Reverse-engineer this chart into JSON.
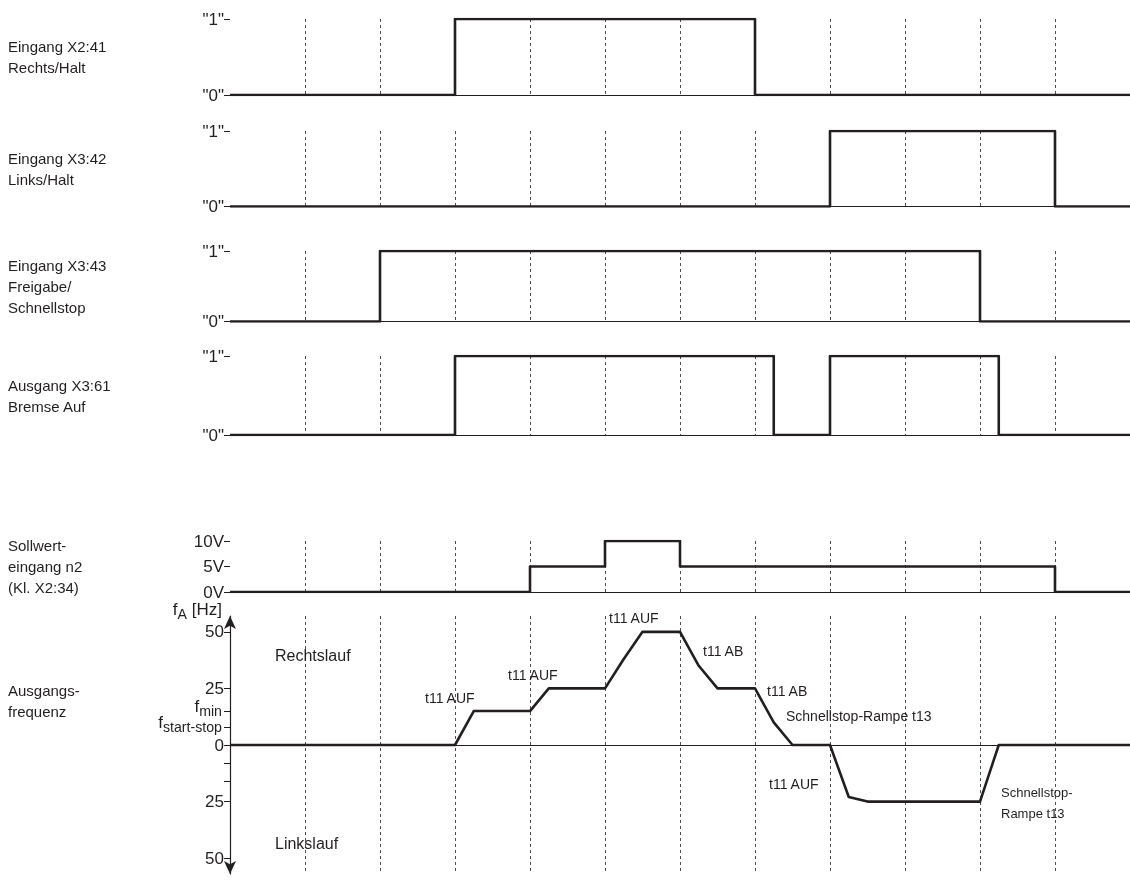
{
  "chart_data": [
    {
      "type": "step",
      "ylabel": "Eingang X2:41\nRechts/Halt",
      "categories": [
        null,
        null,
        null,
        null,
        null,
        null,
        null,
        null,
        null,
        null,
        null,
        null,
        null,
        null,
        null,
        null,
        null,
        null,
        null,
        null,
        null,
        null,
        null,
        null,
        null,
        null,
        null,
        null,
        null,
        null,
        null,
        null,
        null,
        null,
        null,
        null,
        null,
        null,
        null,
        null,
        null,
        null,
        null,
        null,
        null,
        null,
        null,
        null,
        null
      ],
      "series": [
        {
          "color": "#231f20",
          "values": [
            0,
            0,
            0,
            0,
            0,
            0,
            0,
            0,
            0,
            0,
            0,
            0,
            1,
            1,
            1,
            1,
            1,
            1,
            1,
            1,
            1,
            1,
            1,
            1,
            1,
            1,
            1,
            1,
            0,
            0,
            0,
            0,
            0,
            0,
            0,
            0,
            0,
            0,
            0,
            0,
            0,
            0,
            0,
            0,
            0,
            0,
            0,
            0,
            0
          ]
        }
      ],
      "ylim": [
        0,
        1
      ],
      "yticks": [
        {
          "value": 0,
          "label": "\"0\""
        },
        {
          "value": 1,
          "label": "\"1\""
        }
      ],
      "grid": "x",
      "marker": "none",
      "tick_labels": "y"
    },
    {
      "type": "step",
      "ylabel": "Eingang X3:42\nLinks/Halt",
      "categories": [
        null,
        null,
        null,
        null,
        null,
        null,
        null,
        null,
        null,
        null,
        null,
        null,
        null,
        null,
        null,
        null,
        null,
        null,
        null,
        null,
        null,
        null,
        null,
        null,
        null,
        null,
        null,
        null,
        null,
        null,
        null,
        null,
        null,
        null,
        null,
        null,
        null,
        null,
        null,
        null,
        null,
        null,
        null,
        null,
        null,
        null,
        null,
        null,
        null
      ],
      "series": [
        {
          "color": "#231f20",
          "values": [
            0,
            0,
            0,
            0,
            0,
            0,
            0,
            0,
            0,
            0,
            0,
            0,
            0,
            0,
            0,
            0,
            0,
            0,
            0,
            0,
            0,
            0,
            0,
            0,
            0,
            0,
            0,
            0,
            0,
            0,
            0,
            0,
            1,
            1,
            1,
            1,
            1,
            1,
            1,
            1,
            1,
            1,
            1,
            1,
            0,
            0,
            0,
            0,
            0
          ]
        }
      ],
      "ylim": [
        0,
        1
      ],
      "yticks": [
        {
          "value": 0,
          "label": "\"0\""
        },
        {
          "value": 1,
          "label": "\"1\""
        }
      ],
      "grid": "x",
      "marker": "none",
      "tick_labels": "y"
    },
    {
      "type": "step",
      "ylabel": "Eingang X3:43\nFreigabe/\nSchnellstop",
      "categories": [
        null,
        null,
        null,
        null,
        null,
        null,
        null,
        null,
        null,
        null,
        null,
        null,
        null,
        null,
        null,
        null,
        null,
        null,
        null,
        null,
        null,
        null,
        null,
        null,
        null,
        null,
        null,
        null,
        null,
        null,
        null,
        null,
        null,
        null,
        null,
        null,
        null,
        null,
        null,
        null,
        null,
        null,
        null,
        null,
        null,
        null,
        null,
        null,
        null
      ],
      "series": [
        {
          "color": "#231f20",
          "values": [
            0,
            0,
            0,
            0,
            0,
            0,
            0,
            0,
            1,
            1,
            1,
            1,
            1,
            1,
            1,
            1,
            1,
            1,
            1,
            1,
            1,
            1,
            1,
            1,
            1,
            1,
            1,
            1,
            1,
            1,
            1,
            1,
            1,
            1,
            1,
            1,
            1,
            1,
            1,
            1,
            0,
            0,
            0,
            0,
            0,
            0,
            0,
            0,
            0
          ]
        }
      ],
      "ylim": [
        0,
        1
      ],
      "yticks": [
        {
          "value": 0,
          "label": "\"0\""
        },
        {
          "value": 1,
          "label": "\"1\""
        }
      ],
      "grid": "x",
      "marker": "none",
      "tick_labels": "y"
    },
    {
      "type": "step",
      "ylabel": "Ausgang X3:61\nBremse Auf",
      "categories": [
        null,
        null,
        null,
        null,
        null,
        null,
        null,
        null,
        null,
        null,
        null,
        null,
        null,
        null,
        null,
        null,
        null,
        null,
        null,
        null,
        null,
        null,
        null,
        null,
        null,
        null,
        null,
        null,
        null,
        null,
        null,
        null,
        null,
        null,
        null,
        null,
        null,
        null,
        null,
        null,
        null,
        null,
        null,
        null,
        null,
        null,
        null,
        null,
        null
      ],
      "series": [
        {
          "color": "#231f20",
          "values": [
            0,
            0,
            0,
            0,
            0,
            0,
            0,
            0,
            0,
            0,
            0,
            0,
            1,
            1,
            1,
            1,
            1,
            1,
            1,
            1,
            1,
            1,
            1,
            1,
            1,
            1,
            1,
            1,
            1,
            0,
            0,
            0,
            1,
            1,
            1,
            1,
            1,
            1,
            1,
            1,
            1,
            0,
            0,
            0,
            0,
            0,
            0,
            0,
            0
          ]
        }
      ],
      "ylim": [
        0,
        1
      ],
      "yticks": [
        {
          "value": 0,
          "label": "\"0\""
        },
        {
          "value": 1,
          "label": "\"1\""
        }
      ],
      "grid": "x",
      "marker": "none",
      "tick_labels": "y"
    },
    {
      "type": "step",
      "ylabel": "Sollwert-\neingang n2\n(Kl. X2:34)",
      "categories": [
        null,
        null,
        null,
        null,
        null,
        null,
        null,
        null,
        null,
        null,
        null,
        null,
        null,
        null,
        null,
        null,
        null,
        null,
        null,
        null,
        null,
        null,
        null,
        null,
        null,
        null,
        null,
        null,
        null,
        null,
        null,
        null,
        null,
        null,
        null,
        null,
        null,
        null,
        null,
        null,
        null,
        null,
        null,
        null,
        null,
        null,
        null,
        null,
        null
      ],
      "series": [
        {
          "color": "#231f20",
          "values": [
            0,
            0,
            0,
            0,
            0,
            0,
            0,
            0,
            0,
            0,
            0,
            0,
            0,
            0,
            0,
            0,
            5,
            5,
            5,
            5,
            10,
            10,
            10,
            10,
            5,
            5,
            5,
            5,
            5,
            5,
            5,
            5,
            5,
            5,
            5,
            5,
            5,
            5,
            5,
            5,
            5,
            5,
            5,
            5,
            0,
            0,
            0,
            0,
            0
          ]
        }
      ],
      "ylim": [
        0,
        10
      ],
      "yticks": [
        {
          "value": 0,
          "label": "0V"
        },
        {
          "value": 5,
          "label": "5V"
        },
        {
          "value": 10,
          "label": "10V"
        }
      ],
      "grid": "x",
      "marker": "none",
      "tick_labels": "y"
    },
    {
      "type": "line",
      "ylabel": "f$_{A}$ [Hz]",
      "categories": [
        null,
        null,
        null,
        null,
        null,
        null,
        null,
        null,
        null,
        null,
        null,
        null,
        null,
        null,
        null,
        null,
        null,
        null,
        null,
        null,
        null,
        null,
        null,
        null,
        null,
        null,
        null,
        null,
        null,
        null,
        null,
        null,
        null,
        null,
        null,
        null,
        null,
        null,
        null,
        null,
        null,
        null,
        null,
        null,
        null,
        null,
        null,
        null,
        null
      ],
      "series": [
        {
          "color": "#231f20",
          "values": [
            0,
            0,
            0,
            0,
            0,
            0,
            0,
            0,
            0,
            0,
            0,
            0,
            0,
            15,
            15,
            15,
            15,
            25,
            25,
            25,
            25,
            38,
            50,
            50,
            50,
            35,
            25,
            25,
            25,
            10,
            0,
            0,
            0,
            -23,
            -25,
            -25,
            -25,
            -25,
            -25,
            -25,
            -25,
            0,
            0,
            0,
            0,
            0,
            0,
            0,
            0
          ]
        }
      ],
      "ylim": [
        -57,
        57
      ],
      "yticks": [
        {
          "value": -50,
          "label": "50"
        },
        {
          "value": -25,
          "label": "25"
        },
        {
          "value": -16,
          "label": null
        },
        {
          "value": -8,
          "label": null
        },
        0,
        {
          "value": 8,
          "label": "f$_{start-stop}$"
        },
        {
          "value": 15,
          "label": "f$_{min}$"
        },
        25,
        50
      ],
      "annotations": [
        "Ausgangs-\nfrequenz",
        "Rechtslauf",
        "Linkslauf",
        "t11 AUF",
        "t11 AUF",
        "t11 AUF",
        "t11 AB",
        "t11 AB",
        "Schnellstop-Rampe t13",
        "t11 AUF",
        "Schnellstop-\nRampe t13"
      ],
      "grid": "x",
      "marker": "none",
      "tick_labels": "y"
    }
  ]
}
